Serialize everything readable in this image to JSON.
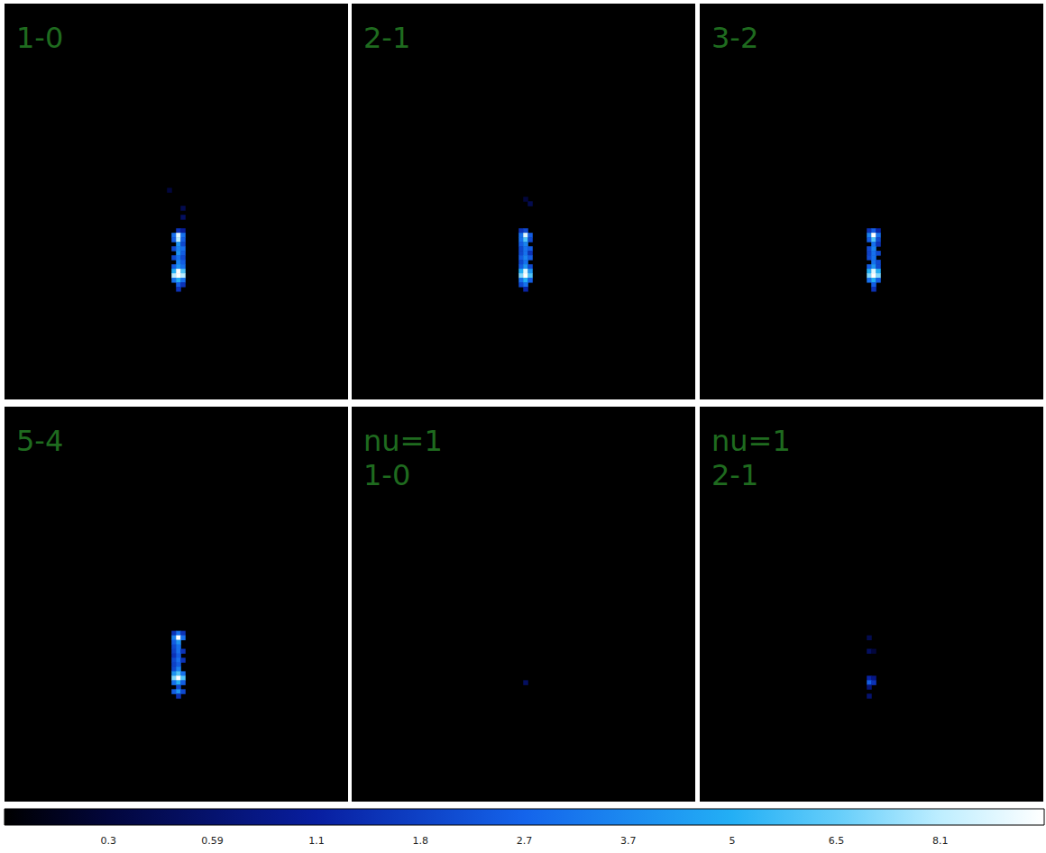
{
  "chart_data": {
    "type": "heatmap",
    "tick_labels": false,
    "columns": 76,
    "rows": 88,
    "colorbar": {
      "range": [
        0.1,
        9.9
      ],
      "ticks": [
        0.3,
        0.59,
        1.1,
        1.8,
        2.7,
        3.7,
        5,
        6.5,
        8.1
      ]
    },
    "panels": [
      {
        "label": "1-0",
        "cells": [
          [
            36,
            41,
            0.3
          ],
          [
            39,
            45,
            0.4
          ],
          [
            39,
            47,
            0.5
          ],
          [
            38,
            50,
            1.5
          ],
          [
            39,
            50,
            1.0
          ],
          [
            37,
            51,
            3
          ],
          [
            38,
            51,
            9
          ],
          [
            39,
            51,
            3
          ],
          [
            37,
            52,
            2.5
          ],
          [
            38,
            52,
            8
          ],
          [
            39,
            52,
            2.5
          ],
          [
            38,
            53,
            4
          ],
          [
            39,
            53,
            2
          ],
          [
            37,
            54,
            2
          ],
          [
            38,
            54,
            3.5
          ],
          [
            39,
            54,
            3
          ],
          [
            38,
            55,
            4
          ],
          [
            39,
            55,
            2.5
          ],
          [
            37,
            56,
            2
          ],
          [
            38,
            56,
            3
          ],
          [
            39,
            56,
            2
          ],
          [
            38,
            57,
            3.5
          ],
          [
            39,
            57,
            2.5
          ],
          [
            37,
            58,
            2.5
          ],
          [
            38,
            58,
            4
          ],
          [
            39,
            58,
            3
          ],
          [
            37,
            59,
            5
          ],
          [
            38,
            59,
            10
          ],
          [
            39,
            59,
            6
          ],
          [
            37,
            60,
            8
          ],
          [
            38,
            60,
            10
          ],
          [
            39,
            60,
            8
          ],
          [
            37,
            61,
            3
          ],
          [
            38,
            61,
            5
          ],
          [
            39,
            61,
            3
          ],
          [
            38,
            62,
            2.5
          ],
          [
            39,
            62,
            1.5
          ],
          [
            38,
            63,
            1.5
          ]
        ]
      },
      {
        "label": "2-1",
        "cells": [
          [
            38,
            43,
            0.3
          ],
          [
            39,
            44,
            0.4
          ],
          [
            37,
            50,
            1.5
          ],
          [
            38,
            50,
            2
          ],
          [
            37,
            51,
            3
          ],
          [
            38,
            51,
            9
          ],
          [
            39,
            51,
            2.5
          ],
          [
            37,
            52,
            3
          ],
          [
            38,
            52,
            6
          ],
          [
            39,
            52,
            2
          ],
          [
            37,
            53,
            2.5
          ],
          [
            38,
            53,
            3.5
          ],
          [
            37,
            54,
            2
          ],
          [
            38,
            54,
            3
          ],
          [
            39,
            54,
            2.5
          ],
          [
            37,
            55,
            2
          ],
          [
            38,
            55,
            3
          ],
          [
            39,
            55,
            1.5
          ],
          [
            37,
            56,
            2.5
          ],
          [
            38,
            56,
            3.5
          ],
          [
            39,
            56,
            2.5
          ],
          [
            37,
            57,
            2
          ],
          [
            38,
            57,
            3
          ],
          [
            37,
            58,
            2.5
          ],
          [
            38,
            58,
            4
          ],
          [
            39,
            58,
            2
          ],
          [
            37,
            59,
            5
          ],
          [
            38,
            59,
            9
          ],
          [
            39,
            59,
            4
          ],
          [
            37,
            60,
            7
          ],
          [
            38,
            60,
            10
          ],
          [
            39,
            60,
            6
          ],
          [
            37,
            61,
            3
          ],
          [
            38,
            61,
            5
          ],
          [
            39,
            61,
            2.5
          ],
          [
            37,
            62,
            2
          ],
          [
            38,
            62,
            3
          ],
          [
            38,
            63,
            1.2
          ]
        ]
      },
      {
        "label": "3-2",
        "cells": [
          [
            37,
            50,
            1.5
          ],
          [
            38,
            50,
            2.5
          ],
          [
            39,
            50,
            1.2
          ],
          [
            37,
            51,
            3.5
          ],
          [
            38,
            51,
            10
          ],
          [
            39,
            51,
            3
          ],
          [
            37,
            52,
            2.5
          ],
          [
            38,
            52,
            6
          ],
          [
            39,
            52,
            2
          ],
          [
            38,
            53,
            3
          ],
          [
            39,
            53,
            1.5
          ],
          [
            37,
            54,
            2
          ],
          [
            38,
            54,
            3.5
          ],
          [
            37,
            55,
            1.8
          ],
          [
            38,
            55,
            3
          ],
          [
            39,
            55,
            2
          ],
          [
            37,
            56,
            2
          ],
          [
            38,
            56,
            3
          ],
          [
            38,
            57,
            3
          ],
          [
            39,
            57,
            2
          ],
          [
            37,
            58,
            2.5
          ],
          [
            38,
            58,
            4
          ],
          [
            39,
            58,
            2
          ],
          [
            37,
            59,
            5
          ],
          [
            38,
            59,
            9
          ],
          [
            39,
            59,
            5
          ],
          [
            37,
            60,
            7
          ],
          [
            38,
            60,
            10
          ],
          [
            39,
            60,
            7
          ],
          [
            37,
            61,
            3
          ],
          [
            38,
            61,
            5
          ],
          [
            39,
            61,
            2.5
          ],
          [
            38,
            62,
            2.5
          ],
          [
            38,
            63,
            1.5
          ]
        ]
      },
      {
        "label": "5-4",
        "cells": [
          [
            37,
            50,
            1.5
          ],
          [
            38,
            50,
            3
          ],
          [
            39,
            50,
            1.5
          ],
          [
            37,
            51,
            3.5
          ],
          [
            38,
            51,
            10
          ],
          [
            39,
            51,
            3
          ],
          [
            37,
            52,
            2.5
          ],
          [
            38,
            52,
            4
          ],
          [
            37,
            53,
            2
          ],
          [
            38,
            53,
            3
          ],
          [
            37,
            54,
            1.8
          ],
          [
            38,
            54,
            3
          ],
          [
            39,
            54,
            1.5
          ],
          [
            37,
            55,
            1.5
          ],
          [
            38,
            55,
            2.5
          ],
          [
            37,
            56,
            2
          ],
          [
            38,
            56,
            3
          ],
          [
            39,
            56,
            1.5
          ],
          [
            37,
            57,
            1.8
          ],
          [
            38,
            57,
            2.5
          ],
          [
            37,
            58,
            2
          ],
          [
            38,
            58,
            3.5
          ],
          [
            37,
            59,
            4
          ],
          [
            38,
            59,
            6
          ],
          [
            39,
            59,
            3
          ],
          [
            37,
            60,
            7
          ],
          [
            38,
            60,
            10
          ],
          [
            39,
            60,
            6
          ],
          [
            37,
            61,
            3
          ],
          [
            38,
            61,
            5
          ],
          [
            39,
            61,
            2.5
          ],
          [
            38,
            62,
            2
          ],
          [
            37,
            63,
            2.5
          ],
          [
            38,
            63,
            4
          ],
          [
            39,
            63,
            2
          ],
          [
            38,
            64,
            1.5
          ]
        ]
      },
      {
        "label": "nu=1\n1-0",
        "cells": [
          [
            38,
            61,
            0.5
          ]
        ]
      },
      {
        "label": "nu=1\n2-1",
        "cells": [
          [
            37,
            51,
            0.4
          ],
          [
            37,
            54,
            0.5
          ],
          [
            38,
            54,
            0.3
          ],
          [
            37,
            60,
            1.2
          ],
          [
            38,
            60,
            0.8
          ],
          [
            37,
            61,
            2.5
          ],
          [
            38,
            61,
            1.5
          ],
          [
            37,
            62,
            0.7
          ],
          [
            37,
            64,
            0.6
          ]
        ]
      }
    ]
  }
}
